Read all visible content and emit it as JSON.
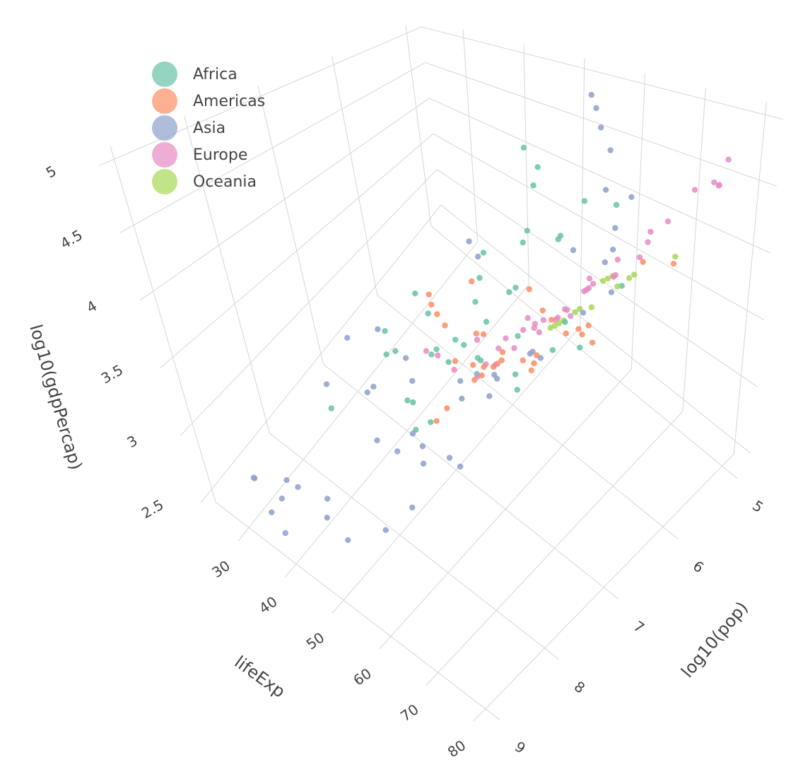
{
  "chart_data": {
    "type": "scatter3d",
    "title": "",
    "axes": {
      "x": {
        "label": "lifeExp",
        "ticks": [
          30,
          40,
          50,
          60,
          70,
          80
        ],
        "range": [
          23,
          83
        ]
      },
      "y": {
        "label": "log10(pop)",
        "ticks": [
          5,
          6,
          7,
          8,
          9
        ],
        "range": [
          4.8,
          9.2
        ]
      },
      "z": {
        "label": "log10(gdpPercap)",
        "ticks": [
          2.5,
          3,
          3.5,
          4,
          4.5,
          5
        ],
        "range": [
          2.4,
          5.1
        ]
      }
    },
    "grid": true,
    "legend_position": "top-left",
    "series": [
      {
        "name": "Africa",
        "color": "#66c2a5",
        "points": [
          [
            31,
            6.5,
            2.7
          ],
          [
            33,
            6.1,
            2.9
          ],
          [
            35,
            6.8,
            2.8
          ],
          [
            38,
            6.3,
            3.0
          ],
          [
            40,
            7.0,
            3.1
          ],
          [
            41,
            5.6,
            3.3
          ],
          [
            43,
            6.6,
            3.0
          ],
          [
            44,
            7.2,
            2.9
          ],
          [
            45,
            6.0,
            3.4
          ],
          [
            46,
            6.9,
            3.2
          ],
          [
            47,
            5.4,
            3.6
          ],
          [
            48,
            7.4,
            3.1
          ],
          [
            49,
            6.4,
            3.5
          ],
          [
            50,
            6.7,
            3.3
          ],
          [
            51,
            5.8,
            3.8
          ],
          [
            52,
            7.1,
            3.4
          ],
          [
            53,
            6.2,
            3.6
          ],
          [
            54,
            7.6,
            3.2
          ],
          [
            55,
            5.2,
            4.0
          ],
          [
            56,
            6.8,
            3.7
          ],
          [
            57,
            7.0,
            3.5
          ],
          [
            58,
            6.5,
            3.9
          ],
          [
            59,
            5.9,
            4.1
          ],
          [
            60,
            7.3,
            3.6
          ],
          [
            61,
            6.1,
            4.2
          ],
          [
            63,
            6.9,
            3.8
          ],
          [
            64,
            5.5,
            4.3
          ],
          [
            66,
            7.2,
            3.7
          ],
          [
            68,
            6.6,
            3.9
          ],
          [
            70,
            7.5,
            3.8
          ],
          [
            71,
            6.0,
            4.0
          ],
          [
            73,
            6.8,
            3.9
          ],
          [
            42,
            5.0,
            4.1
          ],
          [
            48,
            5.3,
            4.2
          ],
          [
            52,
            5.7,
            4.3
          ],
          [
            36,
            7.8,
            2.9
          ],
          [
            39,
            6.0,
            2.6
          ],
          [
            55,
            7.9,
            3.3
          ],
          [
            62,
            6.3,
            3.4
          ],
          [
            46,
            6.2,
            2.8
          ]
        ]
      },
      {
        "name": "Americas",
        "color": "#fc8d62",
        "points": [
          [
            40,
            6.4,
            3.3
          ],
          [
            43,
            6.6,
            3.4
          ],
          [
            46,
            6.2,
            3.5
          ],
          [
            48,
            6.9,
            3.6
          ],
          [
            50,
            6.5,
            3.3
          ],
          [
            52,
            7.1,
            3.7
          ],
          [
            54,
            6.7,
            3.5
          ],
          [
            56,
            7.3,
            3.6
          ],
          [
            58,
            6.3,
            3.8
          ],
          [
            60,
            6.9,
            3.6
          ],
          [
            62,
            7.5,
            3.8
          ],
          [
            64,
            6.6,
            3.9
          ],
          [
            65,
            7.0,
            3.7
          ],
          [
            66,
            7.8,
            3.9
          ],
          [
            68,
            6.8,
            4.0
          ],
          [
            69,
            7.2,
            3.8
          ],
          [
            70,
            8.0,
            4.1
          ],
          [
            71,
            6.5,
            3.9
          ],
          [
            72,
            7.4,
            4.0
          ],
          [
            73,
            8.2,
            4.3
          ],
          [
            74,
            6.9,
            4.1
          ],
          [
            75,
            7.6,
            4.2
          ],
          [
            76,
            8.3,
            4.4
          ],
          [
            77,
            7.1,
            4.2
          ],
          [
            78,
            8.4,
            4.5
          ],
          [
            79,
            7.5,
            4.4
          ],
          [
            80,
            8.5,
            4.6
          ],
          [
            72,
            5.3,
            3.9
          ],
          [
            70,
            5.6,
            4.0
          ],
          [
            67,
            6.1,
            3.5
          ],
          [
            58,
            7.8,
            3.4
          ],
          [
            63,
            8.0,
            3.7
          ]
        ]
      },
      {
        "name": "Asia",
        "color": "#8da0cb",
        "points": [
          [
            29,
            8.7,
            2.6
          ],
          [
            31,
            8.8,
            2.7
          ],
          [
            33,
            8.6,
            2.5
          ],
          [
            35,
            8.9,
            2.6
          ],
          [
            37,
            8.7,
            2.8
          ],
          [
            39,
            9.0,
            2.6
          ],
          [
            41,
            8.8,
            2.9
          ],
          [
            44,
            8.6,
            2.8
          ],
          [
            30,
            7.0,
            2.9
          ],
          [
            34,
            6.8,
            3.0
          ],
          [
            37,
            7.2,
            2.8
          ],
          [
            40,
            7.5,
            3.0
          ],
          [
            42,
            7.0,
            3.1
          ],
          [
            45,
            7.8,
            2.9
          ],
          [
            47,
            7.3,
            3.2
          ],
          [
            50,
            7.6,
            3.0
          ],
          [
            52,
            8.0,
            3.1
          ],
          [
            54,
            7.1,
            3.3
          ],
          [
            56,
            7.9,
            3.2
          ],
          [
            58,
            7.4,
            3.4
          ],
          [
            60,
            8.2,
            3.3
          ],
          [
            62,
            7.2,
            3.6
          ],
          [
            64,
            8.1,
            3.4
          ],
          [
            66,
            7.6,
            3.7
          ],
          [
            68,
            9.0,
            3.5
          ],
          [
            70,
            8.4,
            3.6
          ],
          [
            72,
            7.3,
            4.0
          ],
          [
            74,
            8.1,
            4.2
          ],
          [
            76,
            7.0,
            4.3
          ],
          [
            78,
            7.9,
            4.4
          ],
          [
            80,
            8.1,
            4.5
          ],
          [
            82,
            7.1,
            4.6
          ],
          [
            56,
            5.2,
            5.0
          ],
          [
            58,
            5.3,
            4.95
          ],
          [
            60,
            5.4,
            4.85
          ],
          [
            64,
            5.6,
            4.8
          ],
          [
            70,
            5.8,
            4.6
          ],
          [
            72,
            6.2,
            4.55
          ],
          [
            74,
            6.4,
            4.5
          ],
          [
            68,
            6.0,
            4.7
          ],
          [
            66,
            6.3,
            4.3
          ],
          [
            75,
            6.6,
            4.5
          ],
          [
            50,
            6.5,
            4.1
          ],
          [
            45,
            6.0,
            3.6
          ],
          [
            36,
            7.8,
            3.1
          ],
          [
            48,
            8.9,
            2.9
          ],
          [
            55,
            9.1,
            3.0
          ],
          [
            62,
            9.0,
            3.2
          ]
        ]
      },
      {
        "name": "Europe",
        "color": "#e78ac3",
        "points": [
          [
            45,
            6.9,
            3.2
          ],
          [
            50,
            7.1,
            3.4
          ],
          [
            54,
            6.8,
            3.5
          ],
          [
            57,
            7.4,
            3.6
          ],
          [
            60,
            6.5,
            3.7
          ],
          [
            62,
            7.0,
            3.8
          ],
          [
            64,
            7.6,
            3.8
          ],
          [
            65,
            6.8,
            3.9
          ],
          [
            66,
            7.2,
            3.9
          ],
          [
            67,
            7.7,
            4.0
          ],
          [
            68,
            6.6,
            4.0
          ],
          [
            69,
            7.0,
            4.1
          ],
          [
            70,
            7.8,
            4.1
          ],
          [
            70,
            6.4,
            4.2
          ],
          [
            71,
            7.3,
            4.2
          ],
          [
            72,
            6.9,
            4.2
          ],
          [
            72,
            7.9,
            4.3
          ],
          [
            73,
            6.6,
            4.3
          ],
          [
            74,
            7.2,
            4.3
          ],
          [
            74,
            7.7,
            4.4
          ],
          [
            75,
            6.9,
            4.4
          ],
          [
            76,
            7.4,
            4.4
          ],
          [
            76,
            6.5,
            4.5
          ],
          [
            77,
            7.0,
            4.5
          ],
          [
            78,
            7.8,
            4.5
          ],
          [
            78,
            6.7,
            4.5
          ],
          [
            79,
            7.2,
            4.6
          ],
          [
            80,
            6.9,
            4.6
          ],
          [
            81,
            7.6,
            4.6
          ],
          [
            82,
            6.7,
            4.7
          ],
          [
            76,
            5.4,
            4.6
          ],
          [
            78,
            5.3,
            4.65
          ],
          [
            80,
            5.4,
            4.7
          ],
          [
            81,
            5.5,
            4.75
          ],
          [
            79,
            5.2,
            4.8
          ],
          [
            74,
            5.6,
            4.4
          ],
          [
            73,
            5.8,
            4.3
          ],
          [
            70,
            5.5,
            4.2
          ]
        ]
      },
      {
        "name": "Oceania",
        "color": "#a6d854",
        "points": [
          [
            69,
            6.9,
            4.0
          ],
          [
            70,
            6.2,
            4.1
          ],
          [
            71,
            7.0,
            4.1
          ],
          [
            72,
            6.3,
            4.2
          ],
          [
            73,
            7.1,
            4.2
          ],
          [
            74,
            6.4,
            4.3
          ],
          [
            75,
            7.2,
            4.3
          ],
          [
            76,
            6.5,
            4.3
          ],
          [
            77,
            7.2,
            4.4
          ],
          [
            78,
            6.5,
            4.4
          ],
          [
            79,
            7.3,
            4.5
          ],
          [
            80,
            6.6,
            4.5
          ],
          [
            81,
            7.3,
            4.55
          ],
          [
            80,
            6.0,
            4.4
          ]
        ]
      }
    ]
  }
}
